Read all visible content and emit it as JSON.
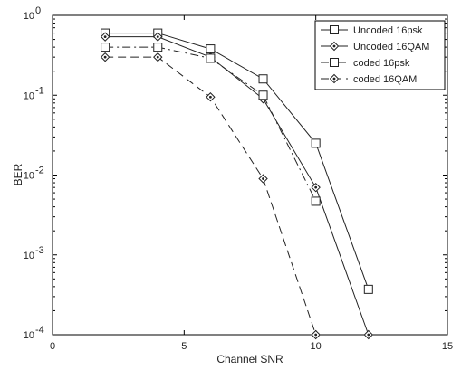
{
  "chart_data": {
    "type": "line",
    "title": "",
    "xlabel": "Channel SNR",
    "ylabel": "BER",
    "xlim": [
      0,
      15
    ],
    "ylim": [
      0.0001,
      1
    ],
    "yscale": "log",
    "grid": false,
    "legend_position": "top-right",
    "x_ticks": [
      {
        "value": 0,
        "label": "0"
      },
      {
        "value": 5,
        "label": "5"
      },
      {
        "value": 10,
        "label": "10"
      },
      {
        "value": 15,
        "label": "15"
      }
    ],
    "y_ticks": [
      {
        "value": 1,
        "base": "10",
        "exp": "0"
      },
      {
        "value": 0.1,
        "base": "10",
        "exp": "-1"
      },
      {
        "value": 0.01,
        "base": "10",
        "exp": "-2"
      },
      {
        "value": 0.001,
        "base": "10",
        "exp": "-3"
      },
      {
        "value": 0.0001,
        "base": "10",
        "exp": "-4"
      }
    ],
    "series": [
      {
        "name": "Uncoded 16psk",
        "marker": "square",
        "dash": "solid",
        "x": [
          2,
          4,
          6,
          8,
          10,
          12
        ],
        "y": [
          0.6,
          0.6,
          0.38,
          0.16,
          0.025,
          0.00037
        ]
      },
      {
        "name": "Uncoded 16QAM",
        "marker": "diamond",
        "dash": "solid",
        "x": [
          2,
          4,
          6,
          8,
          10,
          12
        ],
        "y": [
          0.54,
          0.54,
          0.3,
          0.09,
          0.007,
          0.0001
        ]
      },
      {
        "name": "coded 16psk",
        "marker": "square",
        "dash": "dashdot",
        "x": [
          2,
          4,
          6,
          8,
          10
        ],
        "y": [
          0.4,
          0.4,
          0.29,
          0.1,
          0.0047
        ]
      },
      {
        "name": "coded 16QAM",
        "marker": "diamond",
        "dash": "dashed",
        "x": [
          2,
          4,
          6,
          8,
          10
        ],
        "y": [
          0.3,
          0.3,
          0.095,
          0.009,
          0.0001
        ]
      }
    ]
  }
}
